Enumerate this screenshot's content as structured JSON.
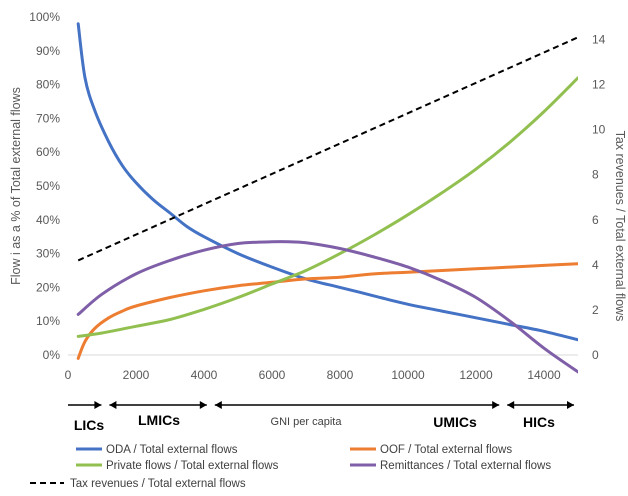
{
  "chart_data": {
    "type": "line",
    "xlabel": "",
    "ylabel": "Flow i as a % of Total external flows",
    "y2label": "Tax revenues  / Total external flows",
    "xlim": [
      0,
      15000
    ],
    "ylim": [
      0,
      100
    ],
    "y2lim": [
      0,
      15
    ],
    "xticks": [
      "0",
      "2000",
      "4000",
      "6000",
      "8000",
      "10000",
      "12000",
      "14000"
    ],
    "yticks": [
      "0%",
      "10%",
      "20%",
      "30%",
      "40%",
      "50%",
      "60%",
      "70%",
      "80%",
      "90%",
      "100%"
    ],
    "y2ticks": [
      "0",
      "2",
      "4",
      "6",
      "8",
      "10",
      "12",
      "14"
    ],
    "grid": false,
    "legend_position": "bottom",
    "series": [
      {
        "name": "ODA / Total external flows",
        "axis": "left",
        "color": "#4472C4",
        "style": "solid",
        "x": [
          300,
          500,
          800,
          1200,
          1600,
          2000,
          2500,
          3000,
          3500,
          4000,
          5000,
          6000,
          7000,
          8000,
          9000,
          10000,
          11000,
          12000,
          13000,
          14000,
          15000
        ],
        "y": [
          98,
          82,
          72,
          63,
          56,
          51,
          46,
          42,
          38,
          35,
          30,
          26,
          22.5,
          20,
          17.5,
          15,
          13,
          11,
          9,
          7,
          4.5
        ]
      },
      {
        "name": "OOF / Total external flows",
        "axis": "left",
        "color": "#ED7D31",
        "style": "solid",
        "x": [
          300,
          500,
          800,
          1200,
          1600,
          2000,
          3000,
          4000,
          5000,
          6000,
          7000,
          8000,
          9000,
          10000,
          11000,
          12000,
          13000,
          14000,
          15000
        ],
        "y": [
          -1,
          4,
          8,
          11,
          13,
          14.5,
          17,
          19,
          20.5,
          21.5,
          22.5,
          23,
          24,
          24.5,
          25,
          25.5,
          26,
          26.5,
          27
        ]
      },
      {
        "name": "Private flows / Total external flows",
        "axis": "left",
        "color": "#92C050",
        "style": "solid",
        "x": [
          300,
          1000,
          2000,
          3000,
          4000,
          5000,
          6000,
          7000,
          8000,
          9000,
          10000,
          11000,
          12000,
          13000,
          14000,
          15000
        ],
        "y": [
          5.5,
          6.5,
          8.5,
          10.5,
          13.5,
          17,
          21,
          25,
          30,
          35.5,
          41.5,
          48,
          55,
          63,
          72,
          82
        ]
      },
      {
        "name": "Remittances / Total external flows",
        "axis": "left",
        "color": "#7F5FA8",
        "style": "solid",
        "x": [
          300,
          1000,
          2000,
          3000,
          4000,
          5000,
          6000,
          6500,
          7000,
          8000,
          9000,
          10000,
          11000,
          12000,
          13000,
          14000,
          15000
        ],
        "y": [
          12,
          18,
          24,
          28,
          31,
          33,
          33.5,
          33.5,
          33.2,
          31.5,
          29,
          26,
          22,
          17,
          10,
          2,
          -5
        ]
      },
      {
        "name": "Tax revenues / Total external flows",
        "axis": "right",
        "color": "#000000",
        "style": "dashed",
        "x": [
          300,
          15000
        ],
        "y": [
          4.2,
          14.1
        ]
      }
    ],
    "income_bands": [
      {
        "label": "LICs",
        "x_start": 0,
        "x_end": 1100
      },
      {
        "label": "LMICs",
        "x_start": 1100,
        "x_end": 4200
      },
      {
        "label": "GNI per capita",
        "x_start": 4200,
        "x_end": 12800
      },
      {
        "label": "UMICs",
        "x_start": 4200,
        "x_end": 12800
      },
      {
        "label": "HICs",
        "x_start": 12800,
        "x_end": 15000
      }
    ]
  }
}
